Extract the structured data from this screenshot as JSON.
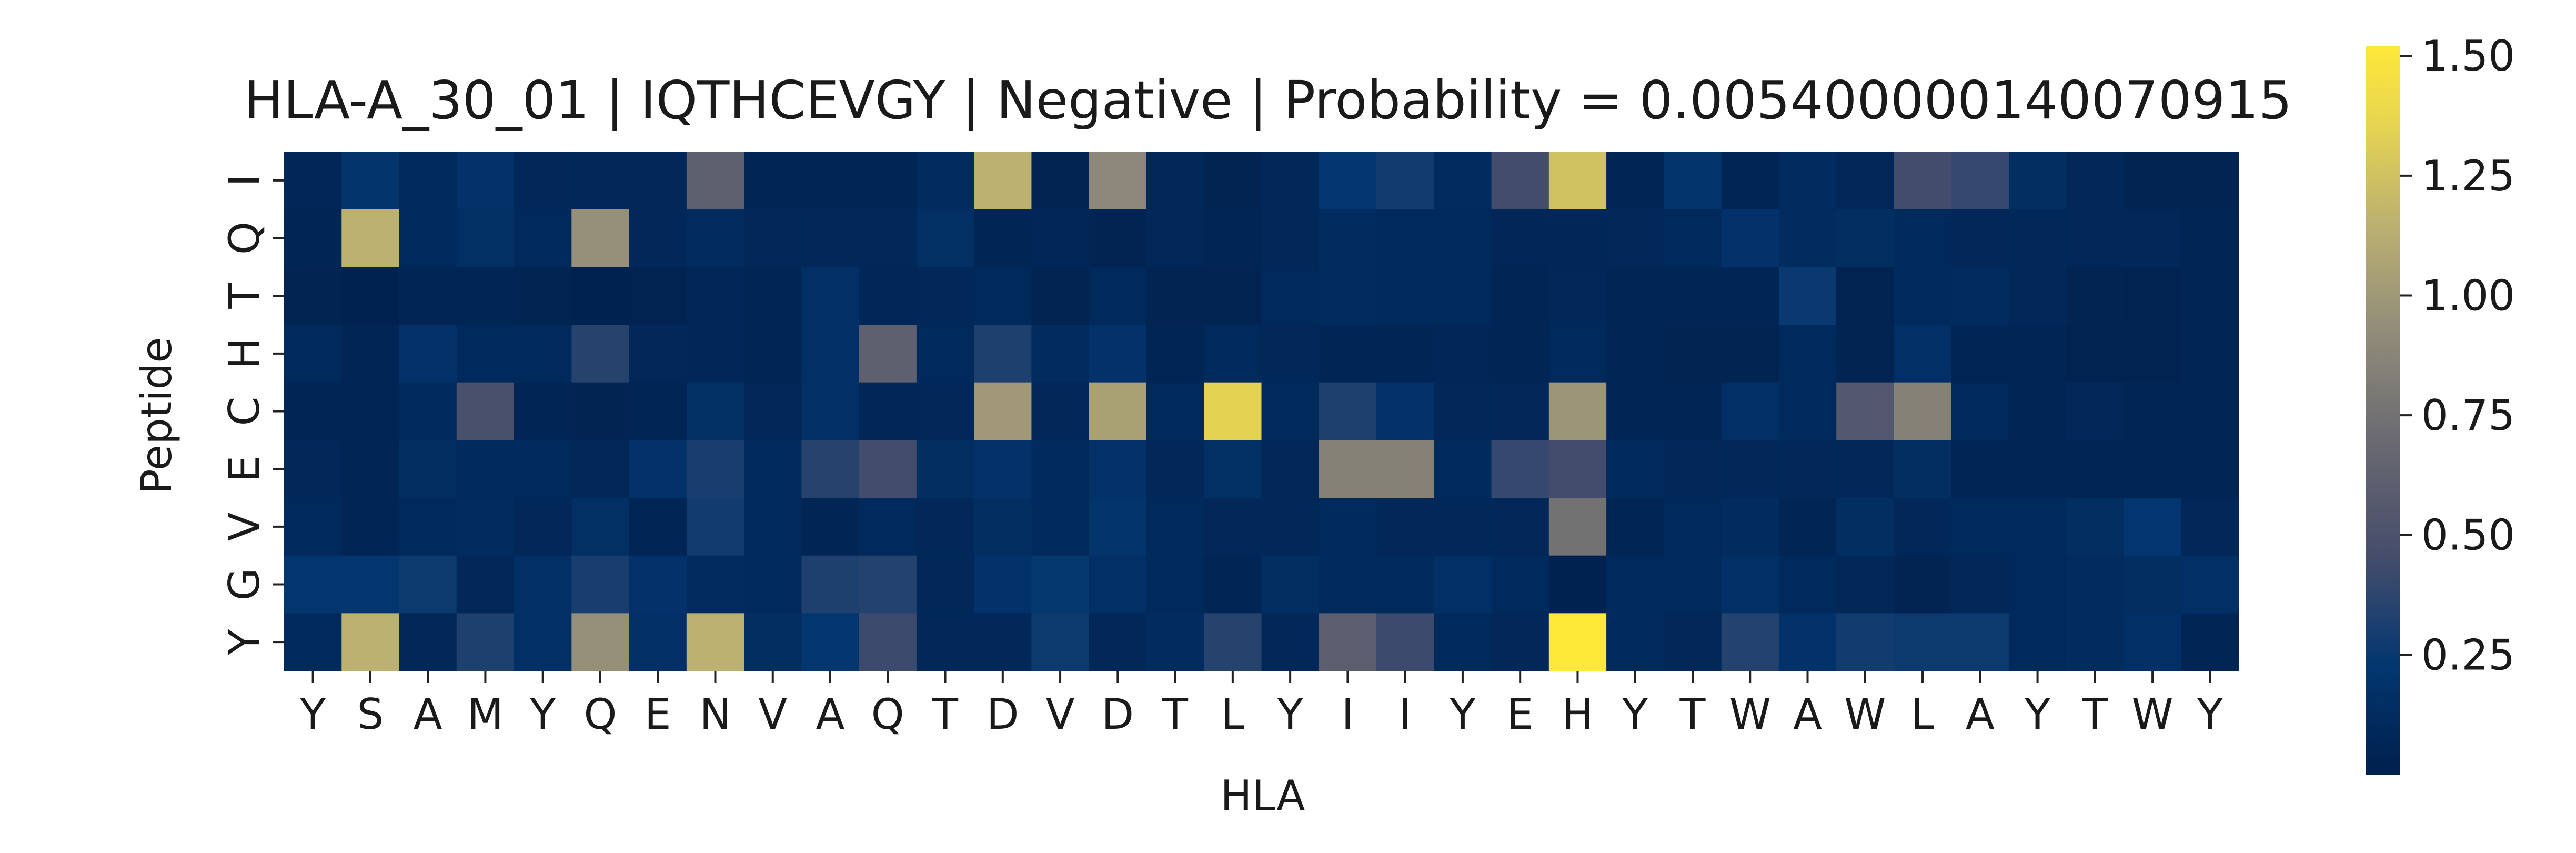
{
  "chart_data": {
    "type": "heatmap",
    "title": "HLA-A_30_01 | IQTHCEVGY | Negative | Probability = 0.005400000140070915",
    "xlabel": "HLA",
    "ylabel": "Peptide",
    "x_categories": [
      "Y",
      "S",
      "A",
      "M",
      "Y",
      "Q",
      "E",
      "N",
      "V",
      "A",
      "Q",
      "T",
      "D",
      "V",
      "D",
      "T",
      "L",
      "Y",
      "I",
      "I",
      "Y",
      "E",
      "H",
      "Y",
      "T",
      "W",
      "A",
      "W",
      "L",
      "A",
      "Y",
      "T",
      "W",
      "Y"
    ],
    "y_categories": [
      "I",
      "Q",
      "T",
      "H",
      "C",
      "E",
      "V",
      "G",
      "Y"
    ],
    "colormap": "cividis",
    "colorbar": {
      "min": 0.0,
      "max": 1.52,
      "ticks": [
        0.25,
        0.5,
        0.75,
        1.0,
        1.25,
        1.5
      ],
      "tick_labels": [
        "0.25",
        "0.50",
        "0.75",
        "1.00",
        "1.25",
        "1.50"
      ]
    },
    "values": [
      [
        0.07,
        0.2,
        0.1,
        0.18,
        0.08,
        0.08,
        0.08,
        0.62,
        0.06,
        0.06,
        0.05,
        0.12,
        1.15,
        0.04,
        0.9,
        0.08,
        0.04,
        0.08,
        0.22,
        0.28,
        0.12,
        0.45,
        1.25,
        0.05,
        0.2,
        0.06,
        0.12,
        0.08,
        0.45,
        0.4,
        0.14,
        0.08,
        0.04,
        0.04
      ],
      [
        0.06,
        1.15,
        0.1,
        0.15,
        0.1,
        0.95,
        0.08,
        0.12,
        0.08,
        0.08,
        0.08,
        0.15,
        0.06,
        0.07,
        0.04,
        0.08,
        0.06,
        0.08,
        0.12,
        0.1,
        0.1,
        0.07,
        0.07,
        0.08,
        0.1,
        0.18,
        0.12,
        0.14,
        0.1,
        0.08,
        0.08,
        0.08,
        0.08,
        0.06
      ],
      [
        0.04,
        0.02,
        0.06,
        0.05,
        0.04,
        0.02,
        0.03,
        0.07,
        0.05,
        0.16,
        0.07,
        0.08,
        0.1,
        0.04,
        0.1,
        0.04,
        0.04,
        0.1,
        0.12,
        0.1,
        0.1,
        0.06,
        0.08,
        0.06,
        0.05,
        0.05,
        0.25,
        0.03,
        0.1,
        0.12,
        0.08,
        0.04,
        0.03,
        0.06
      ],
      [
        0.1,
        0.05,
        0.18,
        0.1,
        0.1,
        0.35,
        0.08,
        0.07,
        0.05,
        0.16,
        0.62,
        0.1,
        0.32,
        0.12,
        0.18,
        0.06,
        0.1,
        0.08,
        0.06,
        0.06,
        0.07,
        0.06,
        0.1,
        0.06,
        0.04,
        0.04,
        0.1,
        0.04,
        0.16,
        0.06,
        0.05,
        0.03,
        0.03,
        0.05
      ],
      [
        0.06,
        0.06,
        0.1,
        0.48,
        0.06,
        0.04,
        0.06,
        0.15,
        0.08,
        0.16,
        0.07,
        0.08,
        1.0,
        0.08,
        1.05,
        0.1,
        1.35,
        0.1,
        0.32,
        0.18,
        0.08,
        0.08,
        0.98,
        0.06,
        0.06,
        0.16,
        0.1,
        0.55,
        0.85,
        0.1,
        0.05,
        0.08,
        0.06,
        0.06
      ],
      [
        0.08,
        0.06,
        0.14,
        0.1,
        0.1,
        0.08,
        0.18,
        0.3,
        0.1,
        0.35,
        0.45,
        0.14,
        0.18,
        0.1,
        0.18,
        0.08,
        0.15,
        0.08,
        0.85,
        0.85,
        0.1,
        0.4,
        0.45,
        0.1,
        0.08,
        0.08,
        0.08,
        0.08,
        0.14,
        0.06,
        0.06,
        0.05,
        0.05,
        0.05
      ],
      [
        0.1,
        0.06,
        0.1,
        0.12,
        0.08,
        0.15,
        0.05,
        0.28,
        0.1,
        0.06,
        0.1,
        0.08,
        0.14,
        0.1,
        0.2,
        0.1,
        0.08,
        0.08,
        0.1,
        0.08,
        0.08,
        0.08,
        0.75,
        0.05,
        0.1,
        0.12,
        0.05,
        0.14,
        0.08,
        0.1,
        0.1,
        0.14,
        0.22,
        0.08
      ],
      [
        0.22,
        0.22,
        0.26,
        0.08,
        0.16,
        0.3,
        0.18,
        0.12,
        0.1,
        0.32,
        0.34,
        0.08,
        0.18,
        0.24,
        0.16,
        0.1,
        0.06,
        0.14,
        0.1,
        0.1,
        0.16,
        0.1,
        0.02,
        0.1,
        0.1,
        0.16,
        0.1,
        0.08,
        0.04,
        0.08,
        0.1,
        0.12,
        0.14,
        0.16
      ],
      [
        0.1,
        1.15,
        0.08,
        0.32,
        0.16,
        0.95,
        0.16,
        1.15,
        0.14,
        0.22,
        0.42,
        0.08,
        0.08,
        0.26,
        0.08,
        0.12,
        0.35,
        0.08,
        0.6,
        0.42,
        0.1,
        0.08,
        1.52,
        0.1,
        0.08,
        0.34,
        0.18,
        0.28,
        0.26,
        0.26,
        0.1,
        0.12,
        0.16,
        0.06
      ]
    ]
  }
}
